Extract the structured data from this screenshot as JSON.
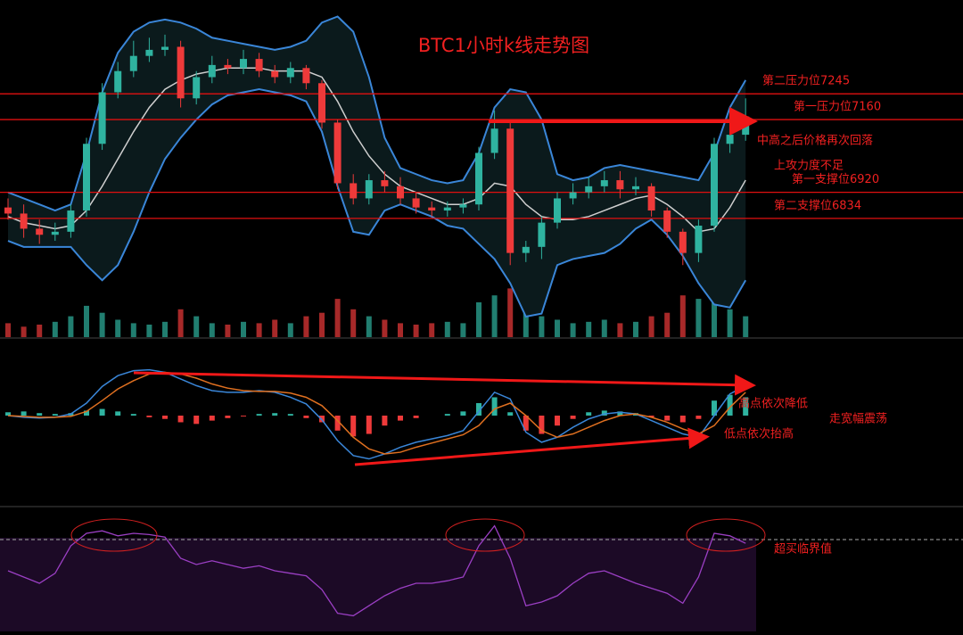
{
  "chart_data": {
    "type": "candlestick",
    "title": "BTC1小时k线走势图",
    "up_color": "#2fb3a0",
    "down_color": "#ee3a3a",
    "ylim": [
      6440,
      7500
    ],
    "open": [
      6870,
      6850,
      6800,
      6780,
      6790,
      6860,
      7080,
      7250,
      7320,
      7370,
      7390,
      7400,
      7230,
      7300,
      7340,
      7330,
      7360,
      7320,
      7300,
      7330,
      7280,
      7150,
      6950,
      6900,
      6960,
      6940,
      6900,
      6870,
      6860,
      6870,
      6880,
      7050,
      7130,
      6720,
      6740,
      6820,
      6900,
      6920,
      6940,
      6960,
      6930,
      6940,
      6860,
      6790,
      6720,
      6810,
      7080,
      7110
    ],
    "high": [
      6900,
      6880,
      6830,
      6820,
      6880,
      7100,
      7280,
      7350,
      7420,
      7430,
      7440,
      7420,
      7320,
      7370,
      7360,
      7390,
      7380,
      7340,
      7350,
      7340,
      7290,
      7160,
      6980,
      6980,
      6990,
      6970,
      6920,
      6890,
      6890,
      6900,
      7070,
      7190,
      7150,
      6760,
      6840,
      6920,
      6950,
      6970,
      6990,
      6990,
      6970,
      6950,
      6870,
      6800,
      6830,
      7100,
      7150,
      7230
    ],
    "low": [
      6830,
      6770,
      6750,
      6760,
      6770,
      6840,
      7060,
      7230,
      7300,
      7350,
      7370,
      7200,
      7210,
      7280,
      7310,
      7310,
      7300,
      7280,
      7280,
      7260,
      7130,
      6930,
      6880,
      6880,
      6920,
      6880,
      6850,
      6840,
      6840,
      6850,
      6860,
      7030,
      6680,
      6690,
      6700,
      6800,
      6880,
      6900,
      6920,
      6900,
      6910,
      6840,
      6770,
      6680,
      6690,
      6790,
      7050,
      7090
    ],
    "close": [
      6850,
      6800,
      6780,
      6790,
      6860,
      7080,
      7250,
      7320,
      7370,
      7390,
      7400,
      7230,
      7300,
      7340,
      7330,
      7360,
      7320,
      7300,
      7330,
      7280,
      7150,
      6950,
      6900,
      6960,
      6940,
      6900,
      6870,
      6860,
      6870,
      6880,
      7050,
      7130,
      6720,
      6740,
      6820,
      6900,
      6920,
      6940,
      6960,
      6930,
      6940,
      6860,
      6790,
      6720,
      6810,
      7080,
      7110,
      7170
    ],
    "bollinger": {
      "upper_color": "#3a86d8",
      "middle_color": "#cfcfcf",
      "upper": [
        6920,
        6900,
        6880,
        6860,
        6880,
        7050,
        7250,
        7380,
        7450,
        7480,
        7490,
        7480,
        7460,
        7430,
        7420,
        7410,
        7400,
        7390,
        7400,
        7420,
        7480,
        7500,
        7450,
        7300,
        7100,
        7000,
        6980,
        6960,
        6950,
        6960,
        7050,
        7200,
        7260,
        7250,
        7160,
        6980,
        6960,
        6970,
        7000,
        7010,
        7000,
        6990,
        6980,
        6970,
        6960,
        7050,
        7200,
        7290
      ],
      "middle": [
        6840,
        6820,
        6810,
        6800,
        6810,
        6860,
        6940,
        7030,
        7120,
        7200,
        7260,
        7290,
        7310,
        7320,
        7330,
        7330,
        7330,
        7320,
        7320,
        7320,
        7300,
        7220,
        7120,
        7040,
        6980,
        6940,
        6920,
        6900,
        6880,
        6880,
        6900,
        6950,
        6940,
        6880,
        6840,
        6830,
        6830,
        6840,
        6860,
        6880,
        6900,
        6910,
        6880,
        6840,
        6790,
        6800,
        6870,
        6960
      ],
      "lower": [
        6760,
        6740,
        6740,
        6740,
        6740,
        6680,
        6630,
        6680,
        6790,
        6920,
        7030,
        7100,
        7160,
        7210,
        7240,
        7250,
        7260,
        7250,
        7240,
        7220,
        7120,
        6940,
        6790,
        6780,
        6860,
        6880,
        6860,
        6840,
        6810,
        6800,
        6750,
        6700,
        6620,
        6510,
        6520,
        6680,
        6700,
        6710,
        6720,
        6750,
        6800,
        6830,
        6780,
        6710,
        6620,
        6550,
        6540,
        6630
      ]
    },
    "levels": [
      {
        "value": 7245,
        "label": "第二压力位7245"
      },
      {
        "value": 7160,
        "label": "第一压力位7160"
      },
      {
        "value": 6920,
        "label": "第一支撑位6920"
      },
      {
        "value": 6834,
        "label": "第二支撑位6834"
      }
    ],
    "level_color": "#e01010",
    "notes": [
      "中高之后价格再次回落",
      "上攻力度不足",
      "高点依次降低",
      "低点依次抬高",
      "走宽幅震荡"
    ],
    "volume": {
      "ylim": [
        0,
        100
      ],
      "values": [
        20,
        15,
        18,
        22,
        30,
        45,
        35,
        25,
        20,
        18,
        22,
        40,
        30,
        20,
        18,
        22,
        20,
        25,
        20,
        30,
        35,
        55,
        40,
        30,
        25,
        20,
        18,
        20,
        22,
        20,
        50,
        60,
        70,
        35,
        30,
        25,
        20,
        22,
        25,
        20,
        22,
        30,
        35,
        60,
        55,
        65,
        40,
        30
      ]
    },
    "macd": {
      "ylim": [
        -60,
        60
      ],
      "dif_color": "#3a86d8",
      "dea_color": "#e07020",
      "histogram": [
        4,
        5,
        3,
        2,
        3,
        6,
        8,
        5,
        2,
        -2,
        -4,
        -8,
        -10,
        -6,
        -3,
        -1,
        2,
        3,
        2,
        -3,
        -8,
        -18,
        -25,
        -22,
        -12,
        -6,
        -3,
        0,
        2,
        5,
        15,
        22,
        4,
        -18,
        -22,
        -12,
        -4,
        4,
        6,
        5,
        3,
        -2,
        -6,
        -8,
        -4,
        18,
        25,
        22
      ],
      "dif": [
        0,
        -2,
        -3,
        -2,
        2,
        15,
        35,
        48,
        54,
        55,
        52,
        44,
        36,
        30,
        28,
        28,
        30,
        28,
        22,
        14,
        -5,
        -30,
        -48,
        -52,
        -46,
        -38,
        -32,
        -28,
        -24,
        -18,
        5,
        28,
        20,
        -20,
        -32,
        -26,
        -14,
        -4,
        2,
        4,
        2,
        -6,
        -14,
        -22,
        -26,
        0,
        26,
        36
      ],
      "dea": [
        0,
        -1,
        -2,
        -2,
        -1,
        5,
        18,
        32,
        42,
        50,
        52,
        50,
        45,
        38,
        33,
        30,
        29,
        29,
        27,
        22,
        12,
        -6,
        -26,
        -40,
        -46,
        -44,
        -38,
        -33,
        -28,
        -23,
        -12,
        8,
        15,
        0,
        -18,
        -26,
        -22,
        -14,
        -6,
        0,
        2,
        -2,
        -8,
        -16,
        -22,
        -12,
        10,
        28
      ]
    },
    "rsi": {
      "ylim": [
        0,
        100
      ],
      "color": "#9b3fc4",
      "threshold": {
        "value": 75,
        "label": "超买临界值"
      },
      "values": [
        50,
        45,
        40,
        48,
        70,
        80,
        82,
        78,
        80,
        79,
        77,
        60,
        55,
        58,
        55,
        52,
        54,
        50,
        48,
        46,
        35,
        16,
        14,
        22,
        30,
        36,
        40,
        40,
        42,
        45,
        70,
        86,
        60,
        22,
        25,
        30,
        40,
        48,
        50,
        45,
        40,
        36,
        32,
        24,
        45,
        80,
        78,
        72
      ]
    }
  }
}
